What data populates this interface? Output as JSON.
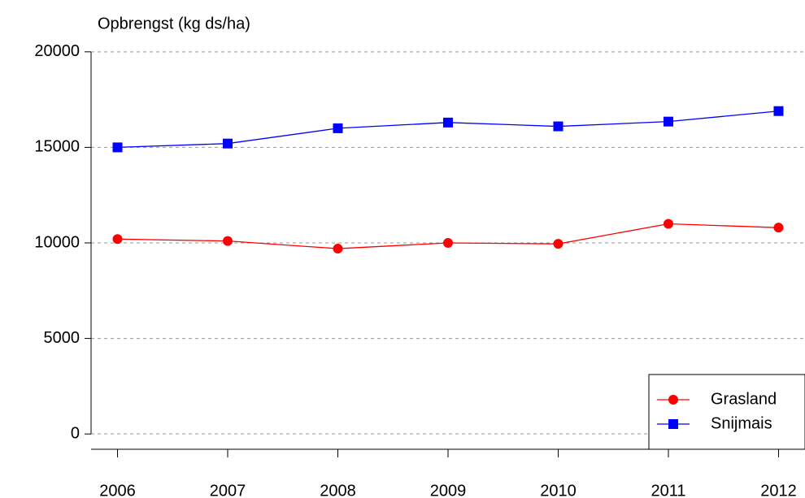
{
  "chart_data": {
    "type": "line",
    "y_label": "Opbrengst (kg ds/ha)",
    "x": [
      2006,
      2007,
      2008,
      2009,
      2010,
      2011,
      2012
    ],
    "series": [
      {
        "name": "Grasland",
        "color": "#ff0000",
        "marker": "circle",
        "values": [
          10200,
          10100,
          9700,
          10000,
          9950,
          11000,
          10800
        ]
      },
      {
        "name": "Snijmais",
        "color": "#0000ff",
        "marker": "square",
        "values": [
          15000,
          15200,
          16000,
          16300,
          16100,
          16350,
          16900
        ]
      }
    ],
    "xlim": [
      2005.76,
      2012.24
    ],
    "xticks": [
      2006,
      2007,
      2008,
      2009,
      2010,
      2011,
      2012
    ],
    "ylim": [
      -800,
      20800
    ],
    "yticks": [
      0,
      5000,
      10000,
      15000,
      20000
    ],
    "grid": true,
    "legend": "bottom-right"
  }
}
